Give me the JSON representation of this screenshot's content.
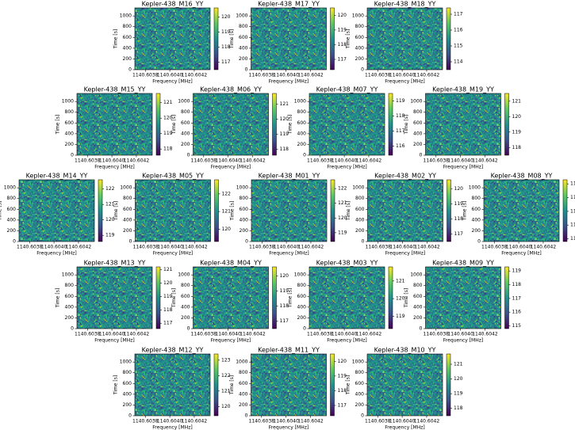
{
  "chart_data": [
    {
      "type": "heatmap",
      "title": "Kepler-438_M16_YY",
      "xlabel": "Frequency [MHz]",
      "ylabel": "Time [s]",
      "xlim": [
        1140.603714,
        1140.60433
      ],
      "xticks": [
        1140.6038,
        {
          "value": 1140.604,
          "label": "1140.6040"
        },
        1140.6042
      ],
      "ylim": [
        0,
        1150
      ],
      "yticks": [
        0,
        200,
        400,
        600,
        800,
        1000
      ],
      "clim": [
        116.5,
        120.6
      ],
      "cticks": [
        117,
        118,
        119,
        120
      ]
    },
    {
      "type": "heatmap",
      "title": "Kepler-438_M17_YY",
      "xlabel": "Frequency [MHz]",
      "ylabel": "Time [s]",
      "xlim": [
        1140.603714,
        1140.60433
      ],
      "xticks": [
        1140.6038,
        {
          "value": 1140.604,
          "label": "1140.6040"
        },
        1140.6042
      ],
      "ylim": [
        0,
        1150
      ],
      "yticks": [
        0,
        200,
        400,
        600,
        800,
        1000
      ],
      "clim": [
        116.3,
        120.5
      ],
      "cticks": [
        117,
        118,
        119,
        120
      ]
    },
    {
      "type": "heatmap",
      "title": "Kepler-438_M18_YY",
      "xlabel": "Frequency [MHz]",
      "ylabel": "Time [s]",
      "xlim": [
        1140.603714,
        1140.60433
      ],
      "xticks": [
        1140.6038,
        {
          "value": 1140.604,
          "label": "1140.6040"
        },
        1140.6042
      ],
      "ylim": [
        0,
        1150
      ],
      "yticks": [
        0,
        200,
        400,
        600,
        800,
        1000
      ],
      "clim": [
        113.5,
        117.4
      ],
      "cticks": [
        114,
        115,
        116,
        117
      ]
    },
    {
      "type": "heatmap",
      "title": "Kepler-438_M15_YY",
      "xlabel": "Frequency [MHz]",
      "ylabel": "Time [s]",
      "xlim": [
        1140.603714,
        1140.60433
      ],
      "xticks": [
        1140.6038,
        {
          "value": 1140.604,
          "label": "1140.6040"
        },
        1140.6042
      ],
      "ylim": [
        0,
        1150
      ],
      "yticks": [
        0,
        200,
        400,
        600,
        800,
        1000
      ],
      "clim": [
        117.6,
        121.6
      ],
      "cticks": [
        118,
        119,
        120,
        121
      ]
    },
    {
      "type": "heatmap",
      "title": "Kepler-438_M06_YY",
      "xlabel": "Frequency [MHz]",
      "ylabel": "Time [s]",
      "xlim": [
        1140.603714,
        1140.60433
      ],
      "xticks": [
        1140.6038,
        {
          "value": 1140.604,
          "label": "1140.6040"
        },
        1140.6042
      ],
      "ylim": [
        0,
        1150
      ],
      "yticks": [
        0,
        200,
        400,
        600,
        800,
        1000
      ],
      "clim": [
        117.6,
        121.7
      ],
      "cticks": [
        118,
        119,
        120,
        121
      ]
    },
    {
      "type": "heatmap",
      "title": "Kepler-438_M07_YY",
      "xlabel": "Frequency [MHz]",
      "ylabel": "Time [s]",
      "xlim": [
        1140.603714,
        1140.60433
      ],
      "xticks": [
        1140.6038,
        {
          "value": 1140.604,
          "label": "1140.6040"
        },
        1140.6042
      ],
      "ylim": [
        0,
        1150
      ],
      "yticks": [
        0,
        200,
        400,
        600,
        800,
        1000
      ],
      "clim": [
        115.4,
        119.5
      ],
      "cticks": [
        116,
        117,
        118,
        119
      ]
    },
    {
      "type": "heatmap",
      "title": "Kepler-438_M19_YY",
      "xlabel": "Frequency [MHz]",
      "ylabel": "Time [s]",
      "xlim": [
        1140.603714,
        1140.60433
      ],
      "xticks": [
        1140.6038,
        {
          "value": 1140.604,
          "label": "1140.6040"
        },
        1140.6042
      ],
      "ylim": [
        0,
        1150
      ],
      "yticks": [
        0,
        200,
        400,
        600,
        800,
        1000
      ],
      "clim": [
        117.5,
        121.5
      ],
      "cticks": [
        118,
        119,
        120,
        121
      ]
    },
    {
      "type": "heatmap",
      "title": "Kepler-438_M14_YY",
      "xlabel": "Frequency [MHz]",
      "ylabel": "Time [s]",
      "xlim": [
        1140.603714,
        1140.60433
      ],
      "xticks": [
        1140.6038,
        {
          "value": 1140.604,
          "label": "1140.6040"
        },
        1140.6042
      ],
      "ylim": [
        0,
        1150
      ],
      "yticks": [
        0,
        200,
        400,
        600,
        800,
        1000
      ],
      "clim": [
        118.6,
        122.6
      ],
      "cticks": [
        119,
        120,
        121,
        122
      ]
    },
    {
      "type": "heatmap",
      "title": "Kepler-438_M05_YY",
      "xlabel": "Frequency [MHz]",
      "ylabel": "Time [s]",
      "xlim": [
        1140.603714,
        1140.60433
      ],
      "xticks": [
        1140.6038,
        {
          "value": 1140.604,
          "label": "1140.6040"
        },
        1140.6042
      ],
      "ylim": [
        0,
        1150
      ],
      "yticks": [
        0,
        200,
        400,
        600,
        800,
        1000
      ],
      "clim": [
        119.3,
        122.8
      ],
      "cticks": [
        120,
        121,
        122
      ]
    },
    {
      "type": "heatmap",
      "title": "Kepler-438_M01_YY",
      "xlabel": "Frequency [MHz]",
      "ylabel": "Time [s]",
      "xlim": [
        1140.603714,
        1140.60433
      ],
      "xticks": [
        1140.6038,
        {
          "value": 1140.604,
          "label": "1140.6040"
        },
        1140.6042
      ],
      "ylim": [
        0,
        1150
      ],
      "yticks": [
        0,
        200,
        400,
        600,
        800,
        1000
      ],
      "clim": [
        118.4,
        122.6
      ],
      "cticks": [
        119,
        120,
        121,
        122
      ]
    },
    {
      "type": "heatmap",
      "title": "Kepler-438_M02_YY",
      "xlabel": "Frequency [MHz]",
      "ylabel": "Time [s]",
      "xlim": [
        1140.603714,
        1140.60433
      ],
      "xticks": [
        1140.6038,
        {
          "value": 1140.604,
          "label": "1140.6040"
        },
        1140.6042
      ],
      "ylim": [
        0,
        1150
      ],
      "yticks": [
        0,
        200,
        400,
        600,
        800,
        1000
      ],
      "clim": [
        116.5,
        120.6
      ],
      "cticks": [
        117,
        118,
        119,
        120
      ]
    },
    {
      "type": "heatmap",
      "title": "Kepler-438_M08_YY",
      "xlabel": "Frequency [MHz]",
      "ylabel": "Time [s]",
      "xlim": [
        1140.603714,
        1140.60433
      ],
      "xticks": [
        1140.6038,
        {
          "value": 1140.604,
          "label": "1140.6040"
        },
        1140.6042
      ],
      "ylim": [
        0,
        1150
      ],
      "yticks": [
        0,
        200,
        400,
        600,
        800,
        1000
      ],
      "clim": [
        111.8,
        116.3
      ],
      "cticks": [
        112,
        113,
        114,
        115,
        116
      ]
    },
    {
      "type": "heatmap",
      "title": "Kepler-438_M13_YY",
      "xlabel": "Frequency [MHz]",
      "ylabel": "Time [s]",
      "xlim": [
        1140.603714,
        1140.60433
      ],
      "xticks": [
        1140.6038,
        {
          "value": 1140.604,
          "label": "1140.6040"
        },
        1140.6042
      ],
      "ylim": [
        0,
        1150
      ],
      "yticks": [
        0,
        200,
        400,
        600,
        800,
        1000
      ],
      "clim": [
        116.6,
        121.2
      ],
      "cticks": [
        117,
        118,
        119,
        120,
        121
      ]
    },
    {
      "type": "heatmap",
      "title": "Kepler-438_M04_YY",
      "xlabel": "Frequency [MHz]",
      "ylabel": "Time [s]",
      "xlim": [
        1140.603714,
        1140.60433
      ],
      "xticks": [
        1140.6038,
        {
          "value": 1140.604,
          "label": "1140.6040"
        },
        1140.6042
      ],
      "ylim": [
        0,
        1150
      ],
      "yticks": [
        0,
        200,
        400,
        600,
        800,
        1000
      ],
      "clim": [
        116.5,
        120.6
      ],
      "cticks": [
        117,
        118,
        119,
        120
      ]
    },
    {
      "type": "heatmap",
      "title": "Kepler-438_M03_YY",
      "xlabel": "Frequency [MHz]",
      "ylabel": "Time [s]",
      "xlim": [
        1140.603714,
        1140.60433
      ],
      "xticks": [
        1140.6038,
        {
          "value": 1140.604,
          "label": "1140.6040"
        },
        1140.6042
      ],
      "ylim": [
        0,
        1150
      ],
      "yticks": [
        0,
        200,
        400,
        600,
        800,
        1000
      ],
      "clim": [
        118.3,
        121.8
      ],
      "cticks": [
        119,
        120,
        121
      ]
    },
    {
      "type": "heatmap",
      "title": "Kepler-438_M09_YY",
      "xlabel": "Frequency [MHz]",
      "ylabel": "Time [s]",
      "xlim": [
        1140.603714,
        1140.60433
      ],
      "xticks": [
        1140.6038,
        {
          "value": 1140.604,
          "label": "1140.6040"
        },
        1140.6042
      ],
      "ylim": [
        0,
        1150
      ],
      "yticks": [
        0,
        200,
        400,
        600,
        800,
        1000
      ],
      "clim": [
        114.8,
        119.3
      ],
      "cticks": [
        115,
        116,
        117,
        118,
        119
      ]
    },
    {
      "type": "heatmap",
      "title": "Kepler-438_M12_YY",
      "xlabel": "Frequency [MHz]",
      "ylabel": "Time [s]",
      "xlim": [
        1140.603714,
        1140.60433
      ],
      "xticks": [
        1140.6038,
        {
          "value": 1140.604,
          "label": "1140.6040"
        },
        1140.6042
      ],
      "ylim": [
        0,
        1150
      ],
      "yticks": [
        0,
        200,
        400,
        600,
        800,
        1000
      ],
      "clim": [
        119.4,
        123.4
      ],
      "cticks": [
        120,
        121,
        122,
        123
      ]
    },
    {
      "type": "heatmap",
      "title": "Kepler-438_M11_YY",
      "xlabel": "Frequency [MHz]",
      "ylabel": "Time [s]",
      "xlim": [
        1140.603714,
        1140.60433
      ],
      "xticks": [
        1140.6038,
        {
          "value": 1140.604,
          "label": "1140.6040"
        },
        1140.6042
      ],
      "ylim": [
        0,
        1150
      ],
      "yticks": [
        0,
        200,
        400,
        600,
        800,
        1000
      ],
      "clim": [
        116.3,
        120.5
      ],
      "cticks": [
        117,
        118,
        119,
        120
      ]
    },
    {
      "type": "heatmap",
      "title": "Kepler-438_M10_YY",
      "xlabel": "Frequency [MHz]",
      "ylabel": "Time [s]",
      "xlim": [
        1140.603714,
        1140.60433
      ],
      "xticks": [
        1140.6038,
        {
          "value": 1140.604,
          "label": "1140.6040"
        },
        1140.6042
      ],
      "ylim": [
        0,
        1150
      ],
      "yticks": [
        0,
        200,
        400,
        600,
        800,
        1000
      ],
      "clim": [
        117.5,
        121.7
      ],
      "cticks": [
        118,
        119,
        120,
        121
      ]
    }
  ]
}
